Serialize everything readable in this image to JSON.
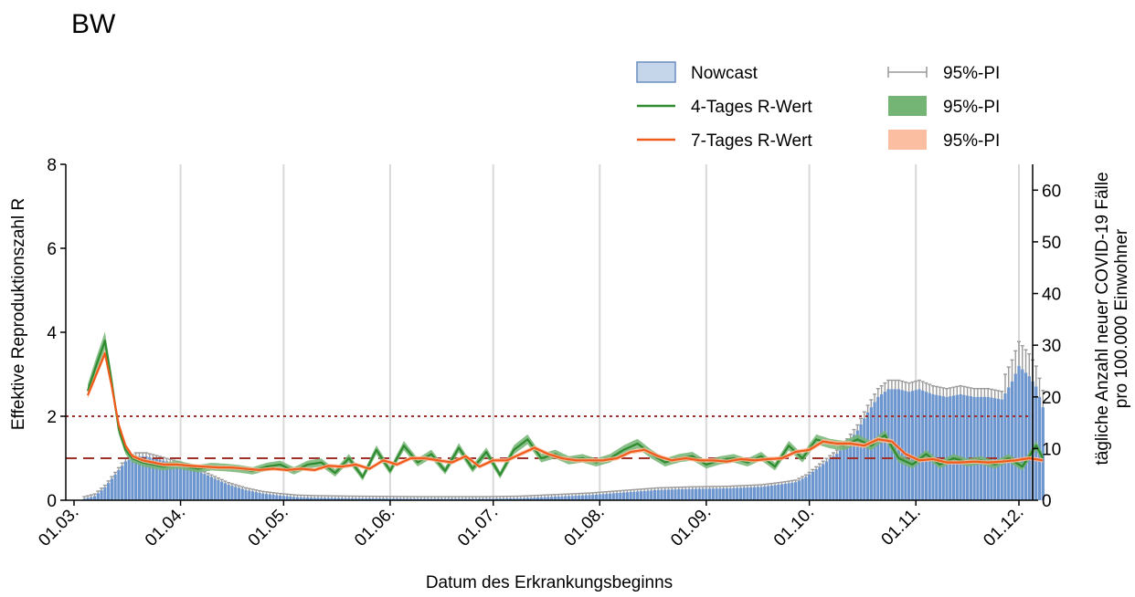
{
  "chart_data": {
    "type": "bar+line",
    "title": "BW",
    "xlabel": "Datum des Erkrankungsbeginns",
    "ylabel_left": "Effektive Reproduktionszahl R",
    "ylabel_right": [
      "tägliche Anzahl neuer COVID-19 Fälle",
      "pro 100.000 Einwohner"
    ],
    "ylim_left": [
      0,
      8
    ],
    "ylim_right": [
      0,
      65
    ],
    "yticks_left": [
      "0",
      "2",
      "4",
      "6",
      "8"
    ],
    "yticks_right": [
      "0",
      "10",
      "20",
      "30",
      "40",
      "50",
      "60"
    ],
    "x_tick_labels": [
      "01.03.",
      "01.04.",
      "01.05.",
      "01.06.",
      "01.07.",
      "01.08.",
      "01.09.",
      "01.10.",
      "01.11.",
      "01.12."
    ],
    "x_tick_days": [
      0,
      31,
      61,
      92,
      122,
      153,
      184,
      214,
      245,
      275
    ],
    "x_range_days": [
      0,
      282
    ],
    "reference_lines": [
      {
        "value": 2,
        "style": "dotted",
        "color": "#a0302a"
      },
      {
        "value": 1,
        "style": "dashed",
        "color": "#a0302a"
      }
    ],
    "legend": [
      {
        "label": "Nowcast",
        "kind": "box",
        "color": "#c5d6ea",
        "border": "#6a8ec0"
      },
      {
        "label": "4-Tages R-Wert",
        "kind": "line",
        "color": "#2e8b2e"
      },
      {
        "label": "7-Tages R-Wert",
        "kind": "line",
        "color": "#f05a1a"
      },
      {
        "label": "95%-PI",
        "kind": "errorbar",
        "color": "#999999"
      },
      {
        "label": "95%-PI",
        "kind": "fill",
        "color": "#74b474"
      },
      {
        "label": "95%-PI",
        "kind": "fill",
        "color": "#fbbea0"
      }
    ],
    "nowcast": {
      "color": "#6d96cf",
      "start_day": 3,
      "anchors_day": [
        3,
        6,
        9,
        12,
        15,
        18,
        21,
        24,
        27,
        30,
        35,
        40,
        45,
        50,
        55,
        60,
        65,
        70,
        80,
        90,
        100,
        110,
        120,
        130,
        140,
        150,
        160,
        170,
        180,
        190,
        200,
        205,
        210,
        213,
        216,
        219,
        222,
        225,
        228,
        231,
        234,
        237,
        240,
        243,
        246,
        250,
        254,
        258,
        262,
        266,
        270,
        273,
        275,
        278,
        280,
        282
      ],
      "anchors_value": [
        0.3,
        0.8,
        2.5,
        5.0,
        7.5,
        8.5,
        8.5,
        8.0,
        7.5,
        7.0,
        6.0,
        4.5,
        3.0,
        2.0,
        1.3,
        0.9,
        0.6,
        0.5,
        0.4,
        0.35,
        0.3,
        0.3,
        0.3,
        0.4,
        0.7,
        1.0,
        1.5,
        2.0,
        2.2,
        2.3,
        2.6,
        3.0,
        3.5,
        4.5,
        6.0,
        7.5,
        9.0,
        11.0,
        13.5,
        17.0,
        20.0,
        21.5,
        21.5,
        21.0,
        21.5,
        20.5,
        20.0,
        20.5,
        20.0,
        20.0,
        19.5,
        23.0,
        26.0,
        24.0,
        22.0,
        18.0
      ]
    },
    "r4": {
      "color": "#2e8b2e",
      "anchors_day": [
        4,
        6,
        9,
        11,
        13,
        15,
        17,
        20,
        23,
        26,
        30,
        33,
        36,
        40,
        44,
        48,
        52,
        56,
        60,
        64,
        68,
        72,
        76,
        80,
        84,
        88,
        92,
        96,
        100,
        104,
        108,
        112,
        116,
        120,
        124,
        128,
        132,
        136,
        140,
        144,
        148,
        152,
        156,
        160,
        164,
        168,
        172,
        176,
        180,
        184,
        188,
        192,
        196,
        200,
        204,
        208,
        212,
        216,
        220,
        224,
        228,
        232,
        236,
        240,
        244,
        248,
        252,
        256,
        260,
        264,
        268,
        272,
        276,
        280,
        282
      ],
      "anchors_value": [
        2.6,
        3.1,
        3.8,
        2.8,
        1.7,
        1.2,
        1.0,
        0.9,
        0.85,
        0.8,
        0.85,
        0.8,
        0.75,
        0.8,
        0.78,
        0.75,
        0.7,
        0.8,
        0.85,
        0.7,
        0.85,
        0.9,
        0.65,
        1.0,
        0.55,
        1.2,
        0.7,
        1.3,
        0.9,
        1.1,
        0.7,
        1.25,
        0.75,
        1.15,
        0.6,
        1.2,
        1.45,
        1.0,
        1.1,
        0.95,
        1.0,
        0.9,
        1.0,
        1.2,
        1.35,
        1.1,
        0.9,
        1.0,
        1.05,
        0.85,
        0.95,
        1.0,
        0.9,
        1.05,
        0.8,
        1.3,
        1.0,
        1.45,
        1.35,
        1.3,
        1.45,
        1.3,
        1.55,
        1.0,
        0.85,
        1.1,
        0.85,
        1.0,
        0.9,
        0.95,
        0.85,
        1.0,
        0.8,
        1.3,
        1.0
      ]
    },
    "r7": {
      "color": "#f05a1a",
      "anchors_day": [
        4,
        6,
        9,
        11,
        13,
        15,
        17,
        20,
        23,
        26,
        30,
        34,
        38,
        42,
        46,
        50,
        54,
        58,
        62,
        66,
        70,
        74,
        78,
        82,
        86,
        90,
        94,
        98,
        102,
        106,
        110,
        114,
        118,
        122,
        126,
        130,
        134,
        138,
        142,
        146,
        150,
        154,
        158,
        162,
        166,
        170,
        174,
        178,
        182,
        186,
        190,
        194,
        198,
        202,
        206,
        210,
        214,
        218,
        222,
        226,
        230,
        234,
        238,
        242,
        246,
        250,
        254,
        258,
        262,
        266,
        270,
        274,
        278,
        282
      ],
      "anchors_value": [
        2.5,
        2.9,
        3.5,
        2.7,
        1.8,
        1.3,
        1.05,
        0.95,
        0.9,
        0.85,
        0.85,
        0.82,
        0.8,
        0.78,
        0.78,
        0.75,
        0.72,
        0.75,
        0.72,
        0.75,
        0.72,
        0.82,
        0.8,
        0.85,
        0.75,
        0.95,
        0.85,
        1.0,
        1.0,
        0.95,
        0.9,
        1.05,
        0.8,
        0.95,
        0.95,
        1.1,
        1.25,
        1.1,
        1.0,
        0.95,
        0.95,
        0.95,
        1.0,
        1.15,
        1.2,
        1.05,
        0.95,
        1.0,
        0.95,
        0.95,
        0.92,
        0.98,
        0.95,
        0.98,
        1.0,
        1.15,
        1.2,
        1.4,
        1.35,
        1.35,
        1.3,
        1.45,
        1.4,
        1.1,
        0.95,
        0.98,
        0.9,
        0.9,
        0.92,
        0.9,
        0.92,
        0.95,
        1.0,
        0.95
      ]
    }
  }
}
